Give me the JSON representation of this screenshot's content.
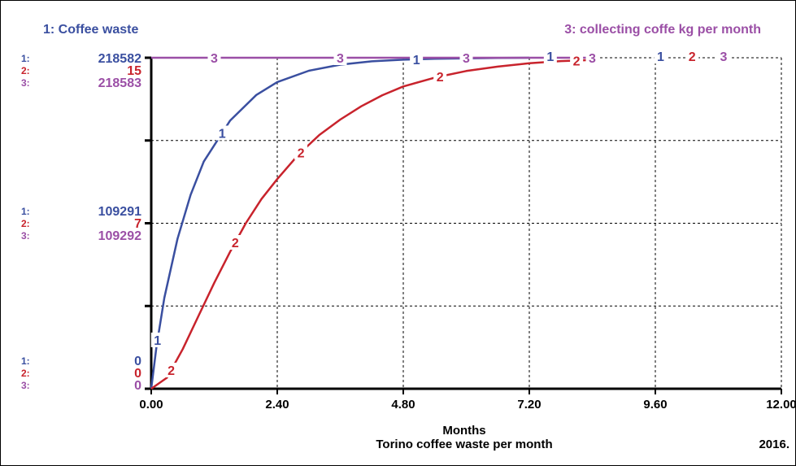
{
  "chart_data": {
    "type": "line",
    "title": "Torino coffee waste per month",
    "xlabel": "Months",
    "footer_right": "2016.",
    "xlim": [
      0,
      12
    ],
    "x_ticks": [
      "0.00",
      "2.40",
      "4.80",
      "7.20",
      "9.60",
      "12.00"
    ],
    "grid": true,
    "legend": [
      {
        "id": "1",
        "text": "1: Coffee waste",
        "color": "#3a4fa0",
        "position": "top-left"
      },
      {
        "id": "3",
        "text": "3: collecting coffe kg per month",
        "color": "#9b4fa6",
        "position": "top-right"
      }
    ],
    "y_scales": [
      {
        "series": "1",
        "prefix": "1:",
        "top": "218582",
        "mid": "109291",
        "bottom": "0",
        "color": "#3a4fa0"
      },
      {
        "series": "2",
        "prefix": "2:",
        "top": "15",
        "mid": "7",
        "bottom": "0",
        "color": "#c8232c"
      },
      {
        "series": "3",
        "prefix": "3:",
        "top": "218583",
        "mid": "109292",
        "bottom": "0",
        "color": "#9b4fa6"
      }
    ],
    "series": [
      {
        "id": "1",
        "name": "Coffee waste",
        "color": "#3a4fa0",
        "max": 218582,
        "x": [
          0,
          0.1,
          0.25,
          0.5,
          0.75,
          1.0,
          1.5,
          2.0,
          2.4,
          3.0,
          3.6,
          4.2,
          4.8,
          5.4,
          6.0,
          6.6,
          7.2
        ],
        "y": [
          0,
          28000,
          60000,
          99000,
          128000,
          150000,
          177000,
          194000,
          202500,
          210000,
          214000,
          216200,
          217300,
          217900,
          218200,
          218400,
          218582
        ]
      },
      {
        "id": "2",
        "name": "",
        "color": "#c8232c",
        "max": 15,
        "x": [
          0,
          0.3,
          0.6,
          0.9,
          1.2,
          1.5,
          1.8,
          2.1,
          2.4,
          2.8,
          3.2,
          3.6,
          4.0,
          4.4,
          4.8,
          5.4,
          6.0,
          6.6,
          7.2,
          7.8,
          8.4
        ],
        "y": [
          0,
          0.5,
          1.8,
          3.3,
          4.8,
          6.2,
          7.5,
          8.6,
          9.5,
          10.6,
          11.5,
          12.2,
          12.8,
          13.3,
          13.7,
          14.1,
          14.4,
          14.6,
          14.75,
          14.85,
          14.9
        ]
      },
      {
        "id": "3",
        "name": "collecting coffe kg per month",
        "color": "#9b4fa6",
        "max": 218583,
        "x": [
          0,
          8.4
        ],
        "y": [
          218583,
          218583
        ]
      }
    ],
    "series_markers": [
      {
        "series": "1",
        "text": "1",
        "x": [
          0.12,
          1.35,
          5.05,
          7.6,
          9.7
        ]
      },
      {
        "series": "2",
        "text": "2",
        "x": [
          0.38,
          1.6,
          2.85,
          5.5,
          8.1,
          10.3
        ]
      },
      {
        "series": "3",
        "text": "3",
        "x": [
          1.2,
          3.6,
          6.0,
          8.4,
          10.9
        ]
      }
    ]
  }
}
